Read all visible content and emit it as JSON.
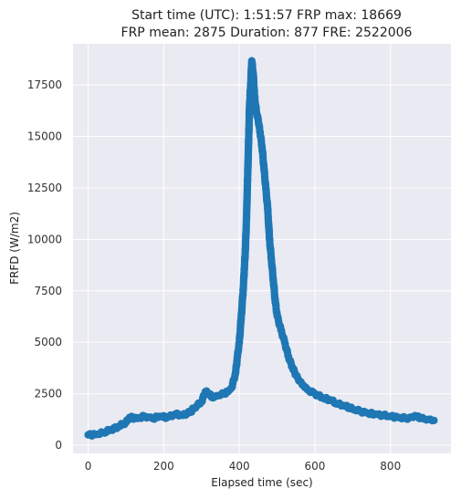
{
  "chart_data": {
    "type": "scatter",
    "title_line1": "Start time (UTC): 1:51:57 FRP max: 18669",
    "title_line2": "FRP mean: 2875 Duration: 877 FRE: 2522006",
    "xlabel": "Elapsed time (sec)",
    "ylabel": "FRFD (W/m2)",
    "xlim": [
      -40,
      960
    ],
    "ylim": [
      -400,
      19500
    ],
    "xticks": [
      0,
      200,
      400,
      600,
      800
    ],
    "yticks": [
      0,
      2500,
      5000,
      7500,
      10000,
      12500,
      15000,
      17500
    ],
    "grid": true,
    "point_color": "#1f77b4",
    "background_color": "#eaeaf2",
    "series": [
      {
        "points": [
          [
            0,
            500
          ],
          [
            20,
            520
          ],
          [
            40,
            600
          ],
          [
            60,
            750
          ],
          [
            80,
            900
          ],
          [
            100,
            1100
          ],
          [
            110,
            1350
          ],
          [
            130,
            1300
          ],
          [
            150,
            1400
          ],
          [
            170,
            1300
          ],
          [
            190,
            1400
          ],
          [
            210,
            1350
          ],
          [
            230,
            1500
          ],
          [
            250,
            1450
          ],
          [
            270,
            1600
          ],
          [
            280,
            1800
          ],
          [
            300,
            2100
          ],
          [
            310,
            2600
          ],
          [
            320,
            2500
          ],
          [
            330,
            2300
          ],
          [
            340,
            2400
          ],
          [
            360,
            2500
          ],
          [
            370,
            2600
          ],
          [
            380,
            2800
          ],
          [
            390,
            3500
          ],
          [
            395,
            4300
          ],
          [
            400,
            5000
          ],
          [
            405,
            6200
          ],
          [
            410,
            7500
          ],
          [
            413,
            8500
          ],
          [
            416,
            9500
          ],
          [
            419,
            11000
          ],
          [
            422,
            13000
          ],
          [
            425,
            15000
          ],
          [
            427,
            16500
          ],
          [
            430,
            17500
          ],
          [
            433,
            18669
          ],
          [
            437,
            18000
          ],
          [
            440,
            17000
          ],
          [
            445,
            16200
          ],
          [
            450,
            15800
          ],
          [
            455,
            15200
          ],
          [
            460,
            14500
          ],
          [
            465,
            13500
          ],
          [
            470,
            12500
          ],
          [
            475,
            11500
          ],
          [
            480,
            10000
          ],
          [
            485,
            9000
          ],
          [
            490,
            8000
          ],
          [
            495,
            7000
          ],
          [
            500,
            6300
          ],
          [
            510,
            5600
          ],
          [
            520,
            5000
          ],
          [
            530,
            4300
          ],
          [
            540,
            3800
          ],
          [
            550,
            3400
          ],
          [
            560,
            3100
          ],
          [
            570,
            2900
          ],
          [
            580,
            2700
          ],
          [
            600,
            2500
          ],
          [
            620,
            2300
          ],
          [
            640,
            2200
          ],
          [
            660,
            2000
          ],
          [
            680,
            1900
          ],
          [
            700,
            1750
          ],
          [
            720,
            1650
          ],
          [
            740,
            1550
          ],
          [
            760,
            1500
          ],
          [
            780,
            1450
          ],
          [
            800,
            1400
          ],
          [
            820,
            1350
          ],
          [
            840,
            1300
          ],
          [
            860,
            1350
          ],
          [
            870,
            1400
          ],
          [
            880,
            1300
          ],
          [
            900,
            1250
          ],
          [
            915,
            1200
          ]
        ]
      }
    ]
  }
}
